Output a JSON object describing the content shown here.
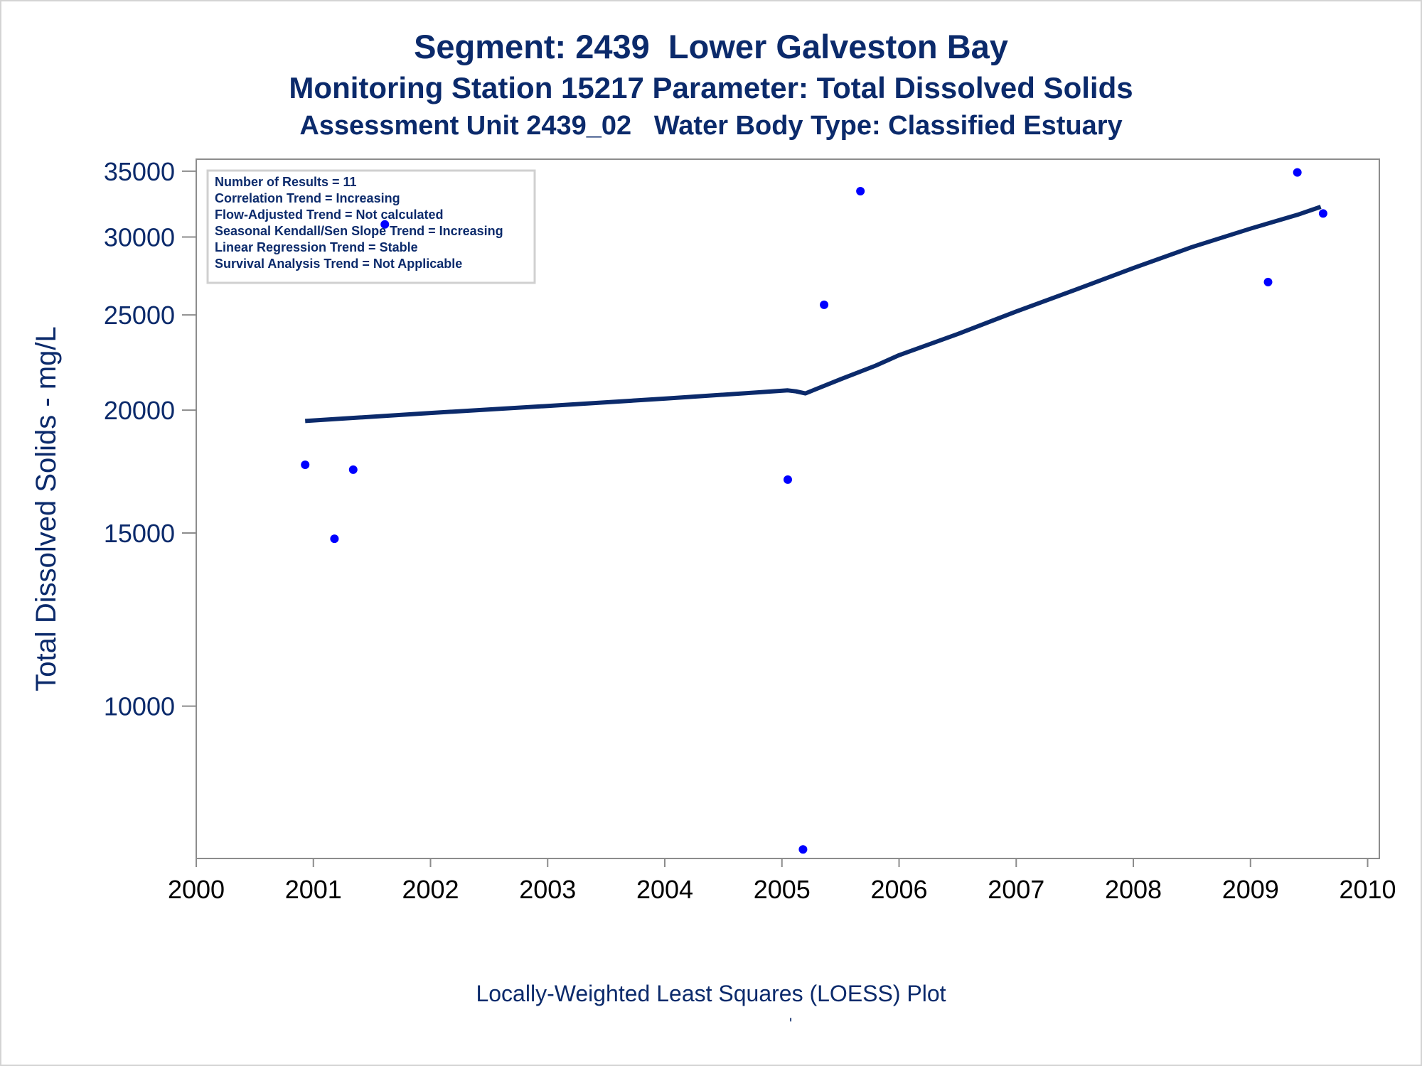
{
  "titles": {
    "line1": "Segment: 2439  Lower Galveston Bay",
    "line2": "Monitoring Station 15217 Parameter: Total Dissolved Solids",
    "line3": "Assessment Unit 2439_02   Water Body Type: Classified Estuary"
  },
  "footnote": "Locally-Weighted Least Squares (LOESS) Plot",
  "footnote_mark": "'",
  "colors": {
    "text": "#0b2a6b",
    "points": "#0000ff",
    "loess_line": "#0b2a6b",
    "axis": "#8c8c8c",
    "inset_border": "#d0d0d0"
  },
  "chart_data": {
    "type": "scatter",
    "ylabel": "Total Dissolved Solids - mg/L",
    "y_scale": "log",
    "ylim": [
      7000,
      36000
    ],
    "xlim": [
      2000,
      2010.1
    ],
    "x_ticks": [
      "2000",
      "2001",
      "2002",
      "2003",
      "2004",
      "2005",
      "2006",
      "2007",
      "2008",
      "2009",
      "2010"
    ],
    "y_ticks": [
      "10000",
      "15000",
      "20000",
      "25000",
      "30000",
      "35000"
    ],
    "grid": false,
    "legend_position": "top-left",
    "stats": [
      "Number of Results = 11",
      "Correlation Trend = Increasing",
      "Flow-Adjusted Trend = Not calculated",
      "Seasonal Kendall/Sen Slope Trend = Increasing",
      "Linear Regression Trend = Stable",
      "Survival Analysis Trend = Not Applicable"
    ],
    "series": [
      {
        "kind": "points",
        "x": [
          2000.93,
          2001.18,
          2001.34,
          2001.61,
          2005.05,
          2005.18,
          2005.36,
          2005.67,
          2009.15,
          2009.4,
          2009.62
        ],
        "y": [
          17600,
          14800,
          17400,
          30900,
          17000,
          7150,
          25600,
          33400,
          27000,
          34900,
          31700
        ]
      },
      {
        "kind": "loess",
        "x": [
          2000.93,
          2002.0,
          2003.0,
          2004.0,
          2005.05,
          2005.12,
          2005.2,
          2005.5,
          2005.8,
          2006.0,
          2006.5,
          2007.0,
          2007.5,
          2008.0,
          2008.5,
          2009.0,
          2009.4,
          2009.6
        ],
        "y": [
          19500,
          19870,
          20200,
          20550,
          20950,
          20900,
          20800,
          21500,
          22200,
          22750,
          23900,
          25200,
          26500,
          27900,
          29300,
          30600,
          31600,
          32200
        ]
      }
    ]
  }
}
